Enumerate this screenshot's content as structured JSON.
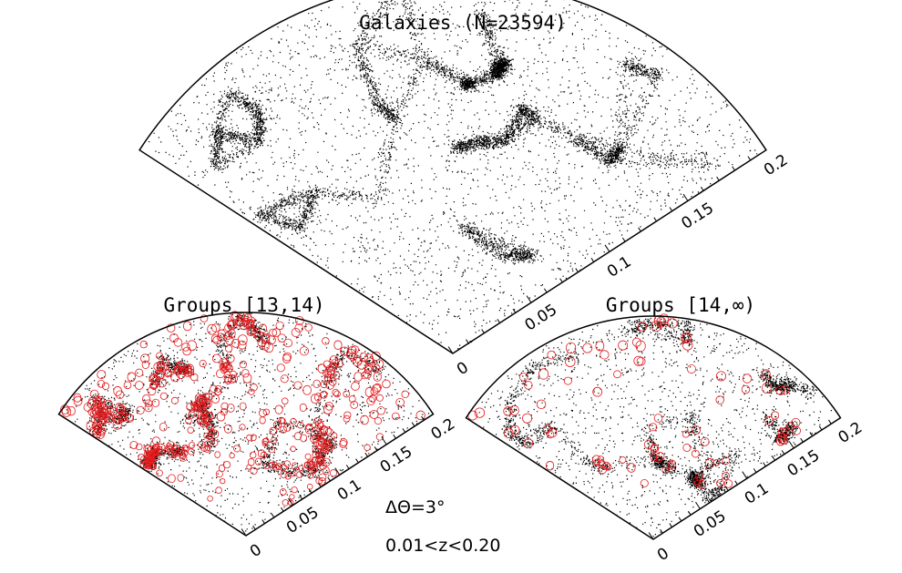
{
  "chart_data": [
    {
      "type": "scatter",
      "panel": "top",
      "title": "Galaxies (N=23594)",
      "projection": "polar-wedge (redshift cone)",
      "radial_axis": {
        "label": "",
        "range": [
          0,
          0.2
        ],
        "ticks": [
          "0",
          "0.05",
          "0.1",
          "0.15",
          "0.2"
        ]
      },
      "series": [
        {
          "marker": "dot",
          "color": "#000000",
          "count": 23594
        }
      ]
    },
    {
      "type": "scatter",
      "panel": "bottom-left",
      "title": "Groups [13,14)",
      "projection": "polar-wedge (redshift cone)",
      "radial_axis": {
        "label": "",
        "range": [
          0,
          0.2
        ],
        "ticks": [
          "0",
          "0.05",
          "0.1",
          "0.15",
          "0.2"
        ]
      },
      "series": [
        {
          "marker": "dot",
          "color": "#000000"
        },
        {
          "marker": "open-circle",
          "color": "#e41a1c"
        }
      ]
    },
    {
      "type": "scatter",
      "panel": "bottom-right",
      "title": "Groups [14,∞)",
      "projection": "polar-wedge (redshift cone)",
      "radial_axis": {
        "label": "",
        "range": [
          0,
          0.2
        ],
        "ticks": [
          "0",
          "0.05",
          "0.1",
          "0.15",
          "0.2"
        ]
      },
      "series": [
        {
          "marker": "dot",
          "color": "#000000"
        },
        {
          "marker": "open-circle",
          "color": "#e41a1c"
        }
      ]
    }
  ],
  "annotations": {
    "delta_theta": "ΔΘ=3°",
    "z_range": "0.01<z<0.20"
  },
  "colors": {
    "galaxies": "#000000",
    "groups": "#e41a1c"
  }
}
